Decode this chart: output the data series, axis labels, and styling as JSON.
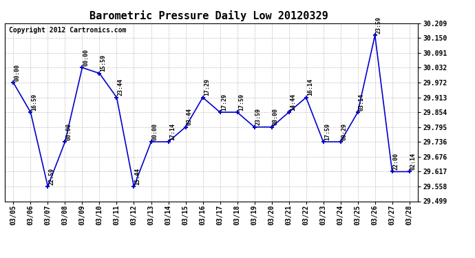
{
  "title": "Barometric Pressure Daily Low 20120329",
  "copyright": "Copyright 2012 Cartronics.com",
  "dates": [
    "03/05",
    "03/06",
    "03/07",
    "03/08",
    "03/09",
    "03/10",
    "03/11",
    "03/12",
    "03/13",
    "03/14",
    "03/15",
    "03/16",
    "03/17",
    "03/18",
    "03/19",
    "03/20",
    "03/21",
    "03/22",
    "03/23",
    "03/24",
    "03/25",
    "03/26",
    "03/27",
    "03/28"
  ],
  "values": [
    29.972,
    29.854,
    29.558,
    29.736,
    30.032,
    30.009,
    29.913,
    29.558,
    29.736,
    29.736,
    29.795,
    29.913,
    29.854,
    29.854,
    29.795,
    29.795,
    29.854,
    29.913,
    29.736,
    29.736,
    29.854,
    30.161,
    29.617,
    29.617
  ],
  "annotations": [
    "00:00",
    "16:59",
    "22:59",
    "00:00",
    "00:00",
    "15:59",
    "23:44",
    "15:44",
    "00:00",
    "17:14",
    "03:44",
    "17:29",
    "17:29",
    "17:59",
    "23:59",
    "00:00",
    "14:44",
    "16:14",
    "17:59",
    "00:29",
    "03:14",
    "23:59",
    "22:00",
    "02:14"
  ],
  "line_color": "#0000cc",
  "marker_color": "#0000cc",
  "background_color": "#ffffff",
  "grid_color": "#c0c0c0",
  "ylim_min": 29.499,
  "ylim_max": 30.209,
  "yticks": [
    29.499,
    29.558,
    29.617,
    29.676,
    29.736,
    29.795,
    29.854,
    29.913,
    29.972,
    30.032,
    30.091,
    30.15,
    30.209
  ],
  "title_fontsize": 11,
  "annotation_fontsize": 6,
  "copyright_fontsize": 7,
  "tick_fontsize": 7
}
